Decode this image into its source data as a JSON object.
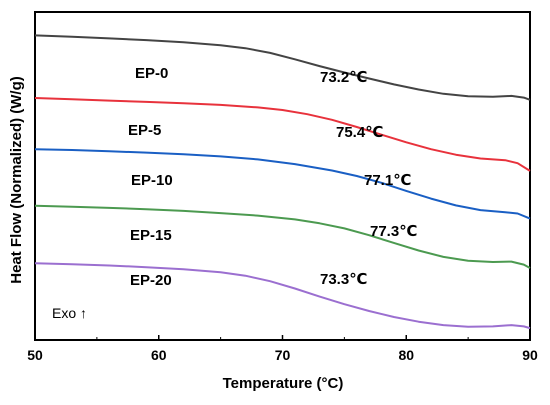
{
  "chart_data": {
    "type": "line",
    "xlabel": "Temperature (°C)",
    "ylabel": "Heat Flow (Normalized) (W/g)",
    "xlim": [
      50,
      90
    ],
    "x_ticks": [
      "50",
      "60",
      "70",
      "80",
      "90"
    ],
    "y_ticks_labeled": false,
    "grid": false,
    "annotation": "Exo ↑",
    "y_scale_note": "relative units (curves vertically offset, y axis has no tick labels)",
    "series": [
      {
        "name": "EP-0",
        "color": "#444444",
        "tg_label": "73.2℃",
        "x": [
          50,
          53,
          56,
          59,
          62,
          65,
          67,
          69,
          71,
          73,
          75,
          77,
          79,
          81,
          83,
          85,
          87,
          88.5,
          89.5,
          90
        ],
        "y": [
          9.35,
          9.32,
          9.28,
          9.24,
          9.19,
          9.12,
          9.05,
          8.94,
          8.79,
          8.63,
          8.48,
          8.34,
          8.2,
          8.08,
          7.98,
          7.92,
          7.91,
          7.93,
          7.89,
          7.84
        ]
      },
      {
        "name": "EP-5",
        "color": "#e8323c",
        "tg_label": "75.4℃",
        "x": [
          50,
          53,
          56,
          59,
          62,
          65,
          68,
          70,
          72,
          74,
          76,
          78,
          80,
          82,
          84,
          86,
          88,
          89,
          90
        ],
        "y": [
          7.88,
          7.85,
          7.82,
          7.79,
          7.76,
          7.72,
          7.66,
          7.6,
          7.5,
          7.37,
          7.2,
          7.02,
          6.84,
          6.68,
          6.55,
          6.46,
          6.42,
          6.35,
          6.17
        ]
      },
      {
        "name": "EP-10",
        "color": "#1a5fc4",
        "tg_label": "77.1℃",
        "x": [
          50,
          53,
          56,
          59,
          62,
          65,
          68,
          71,
          74,
          76,
          78,
          80,
          82,
          84,
          86,
          88,
          89,
          90
        ],
        "y": [
          6.68,
          6.66,
          6.63,
          6.6,
          6.56,
          6.51,
          6.44,
          6.33,
          6.18,
          6.05,
          5.89,
          5.7,
          5.52,
          5.36,
          5.25,
          5.2,
          5.17,
          5.05
        ]
      },
      {
        "name": "EP-15",
        "color": "#4c9a50",
        "tg_label": "77.3℃",
        "x": [
          50,
          53,
          56,
          59,
          62,
          65,
          68,
          71,
          73,
          75,
          77,
          79,
          81,
          83,
          85,
          87,
          88.5,
          89.5,
          90
        ],
        "y": [
          5.35,
          5.33,
          5.3,
          5.27,
          5.23,
          5.18,
          5.12,
          5.03,
          4.94,
          4.82,
          4.66,
          4.48,
          4.3,
          4.15,
          4.06,
          4.03,
          4.04,
          3.97,
          3.89
        ]
      },
      {
        "name": "EP-20",
        "color": "#9b6fd0",
        "tg_label": "73.3℃",
        "x": [
          50,
          53,
          56,
          59,
          62,
          65,
          67,
          69,
          71,
          73,
          75,
          77,
          79,
          81,
          83,
          85,
          87,
          88.5,
          89.5,
          90
        ],
        "y": [
          4.0,
          3.98,
          3.95,
          3.91,
          3.86,
          3.79,
          3.71,
          3.58,
          3.41,
          3.22,
          3.04,
          2.88,
          2.74,
          2.63,
          2.55,
          2.51,
          2.52,
          2.55,
          2.52,
          2.48
        ]
      }
    ]
  }
}
